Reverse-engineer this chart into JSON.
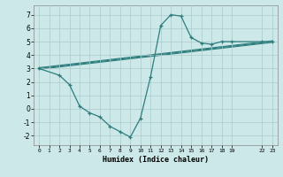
{
  "xlabel": "Humidex (Indice chaleur)",
  "background_color": "#cce8e8",
  "grid_color": "#aacccc",
  "line_color": "#2e7d7d",
  "xlim": [
    -0.5,
    23.5
  ],
  "ylim": [
    -2.7,
    7.7
  ],
  "xtick_positions": [
    0,
    1,
    2,
    3,
    4,
    5,
    6,
    7,
    8,
    9,
    10,
    11,
    12,
    13,
    14,
    15,
    16,
    17,
    18,
    19,
    22,
    23
  ],
  "xtick_labels": [
    "0",
    "1",
    "2",
    "3",
    "4",
    "5",
    "6",
    "7",
    "8",
    "9",
    "10",
    "11",
    "12",
    "13",
    "14",
    "15",
    "16",
    "17",
    "18",
    "19",
    "22",
    "23"
  ],
  "ytick_positions": [
    -2,
    -1,
    0,
    1,
    2,
    3,
    4,
    5,
    6,
    7
  ],
  "ytick_labels": [
    "-2",
    "-1",
    "0",
    "1",
    "2",
    "3",
    "4",
    "5",
    "6",
    "7"
  ],
  "curve_x": [
    0,
    2,
    3,
    4,
    5,
    6,
    7,
    8,
    9,
    10,
    11,
    12,
    13,
    14,
    15,
    16,
    17,
    18,
    19,
    22,
    23
  ],
  "curve_y": [
    3.0,
    2.5,
    1.8,
    0.2,
    -0.3,
    -0.6,
    -1.3,
    -1.7,
    -2.1,
    -0.7,
    2.4,
    6.2,
    7.0,
    6.9,
    5.3,
    4.9,
    4.8,
    5.0,
    5.0,
    5.0,
    5.0
  ],
  "line1_x": [
    0,
    23
  ],
  "line1_y": [
    3.0,
    5.0
  ],
  "line2_x": [
    0,
    23
  ],
  "line2_y": [
    3.0,
    5.0
  ],
  "line3_x": [
    0,
    23
  ],
  "line3_y": [
    3.0,
    5.0
  ]
}
